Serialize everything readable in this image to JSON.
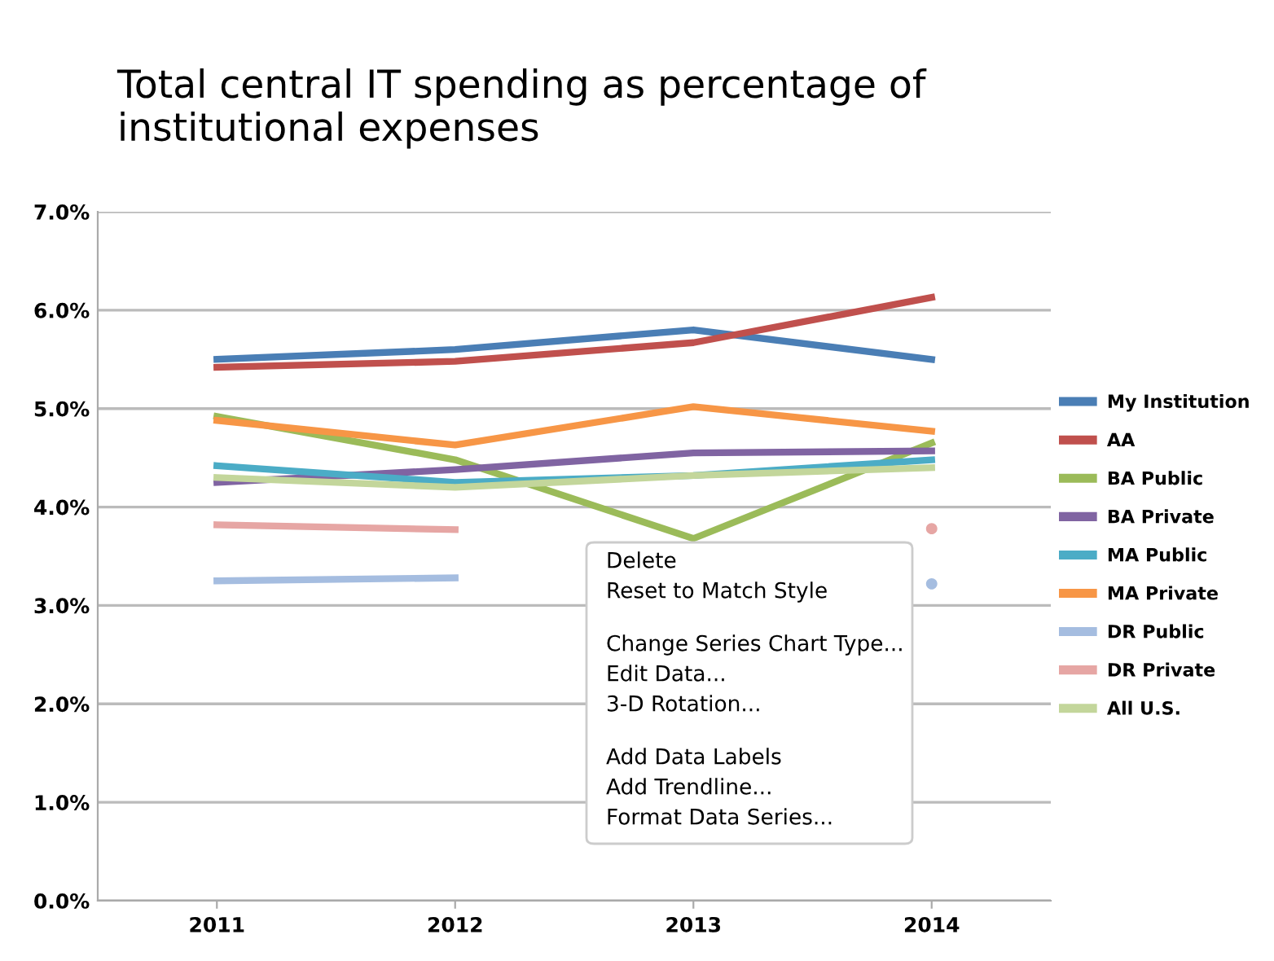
{
  "chart_data": {
    "type": "line",
    "title": "Total central IT spending as percentage of\ninstitutional expenses",
    "categories": [
      "2011",
      "2012",
      "2013",
      "2014"
    ],
    "series": [
      {
        "name": "My Institution",
        "color": "#4a7eb5",
        "values": [
          5.5,
          5.6,
          5.8,
          5.5
        ]
      },
      {
        "name": "AA",
        "color": "#c0504d",
        "values": [
          5.42,
          5.48,
          5.67,
          6.13
        ]
      },
      {
        "name": "BA Public",
        "color": "#9bbb59",
        "values": [
          4.92,
          4.48,
          3.68,
          4.65
        ]
      },
      {
        "name": "BA Private",
        "color": "#8064a2",
        "values": [
          4.25,
          4.38,
          4.55,
          4.57
        ]
      },
      {
        "name": "MA Public",
        "color": "#4bacc6",
        "values": [
          4.42,
          4.25,
          4.32,
          4.48
        ]
      },
      {
        "name": "MA Private",
        "color": "#f79646",
        "values": [
          4.88,
          4.63,
          5.02,
          4.77
        ]
      },
      {
        "name": "DR Public",
        "color": "#a5bde0",
        "values": [
          3.25,
          3.28,
          null,
          3.22
        ]
      },
      {
        "name": "DR Private",
        "color": "#e6a6a4",
        "values": [
          3.82,
          3.77,
          null,
          3.78
        ]
      },
      {
        "name": "All U.S.",
        "color": "#c3d69b",
        "values": [
          4.3,
          4.2,
          4.32,
          4.4
        ]
      }
    ],
    "ylim": [
      0,
      7
    ],
    "yticks": [
      {
        "value": 0,
        "label": "0.0%"
      },
      {
        "value": 1,
        "label": "1.0%"
      },
      {
        "value": 2,
        "label": "2.0%"
      },
      {
        "value": 3,
        "label": "3.0%"
      },
      {
        "value": 4,
        "label": "4.0%"
      },
      {
        "value": 5,
        "label": "5.0%"
      },
      {
        "value": 6,
        "label": "6.0%"
      },
      {
        "value": 7,
        "label": "7.0%"
      }
    ],
    "grid": "y",
    "legend": "right",
    "marker": "none",
    "line_style": "solid",
    "annotations": [
      "Delete",
      "Reset to Match Style",
      "Change Series Chart Type...",
      "Edit Data...",
      "3-D Rotation...",
      "Add Data Labels",
      "Add Trendline...",
      "Format Data Series..."
    ]
  }
}
